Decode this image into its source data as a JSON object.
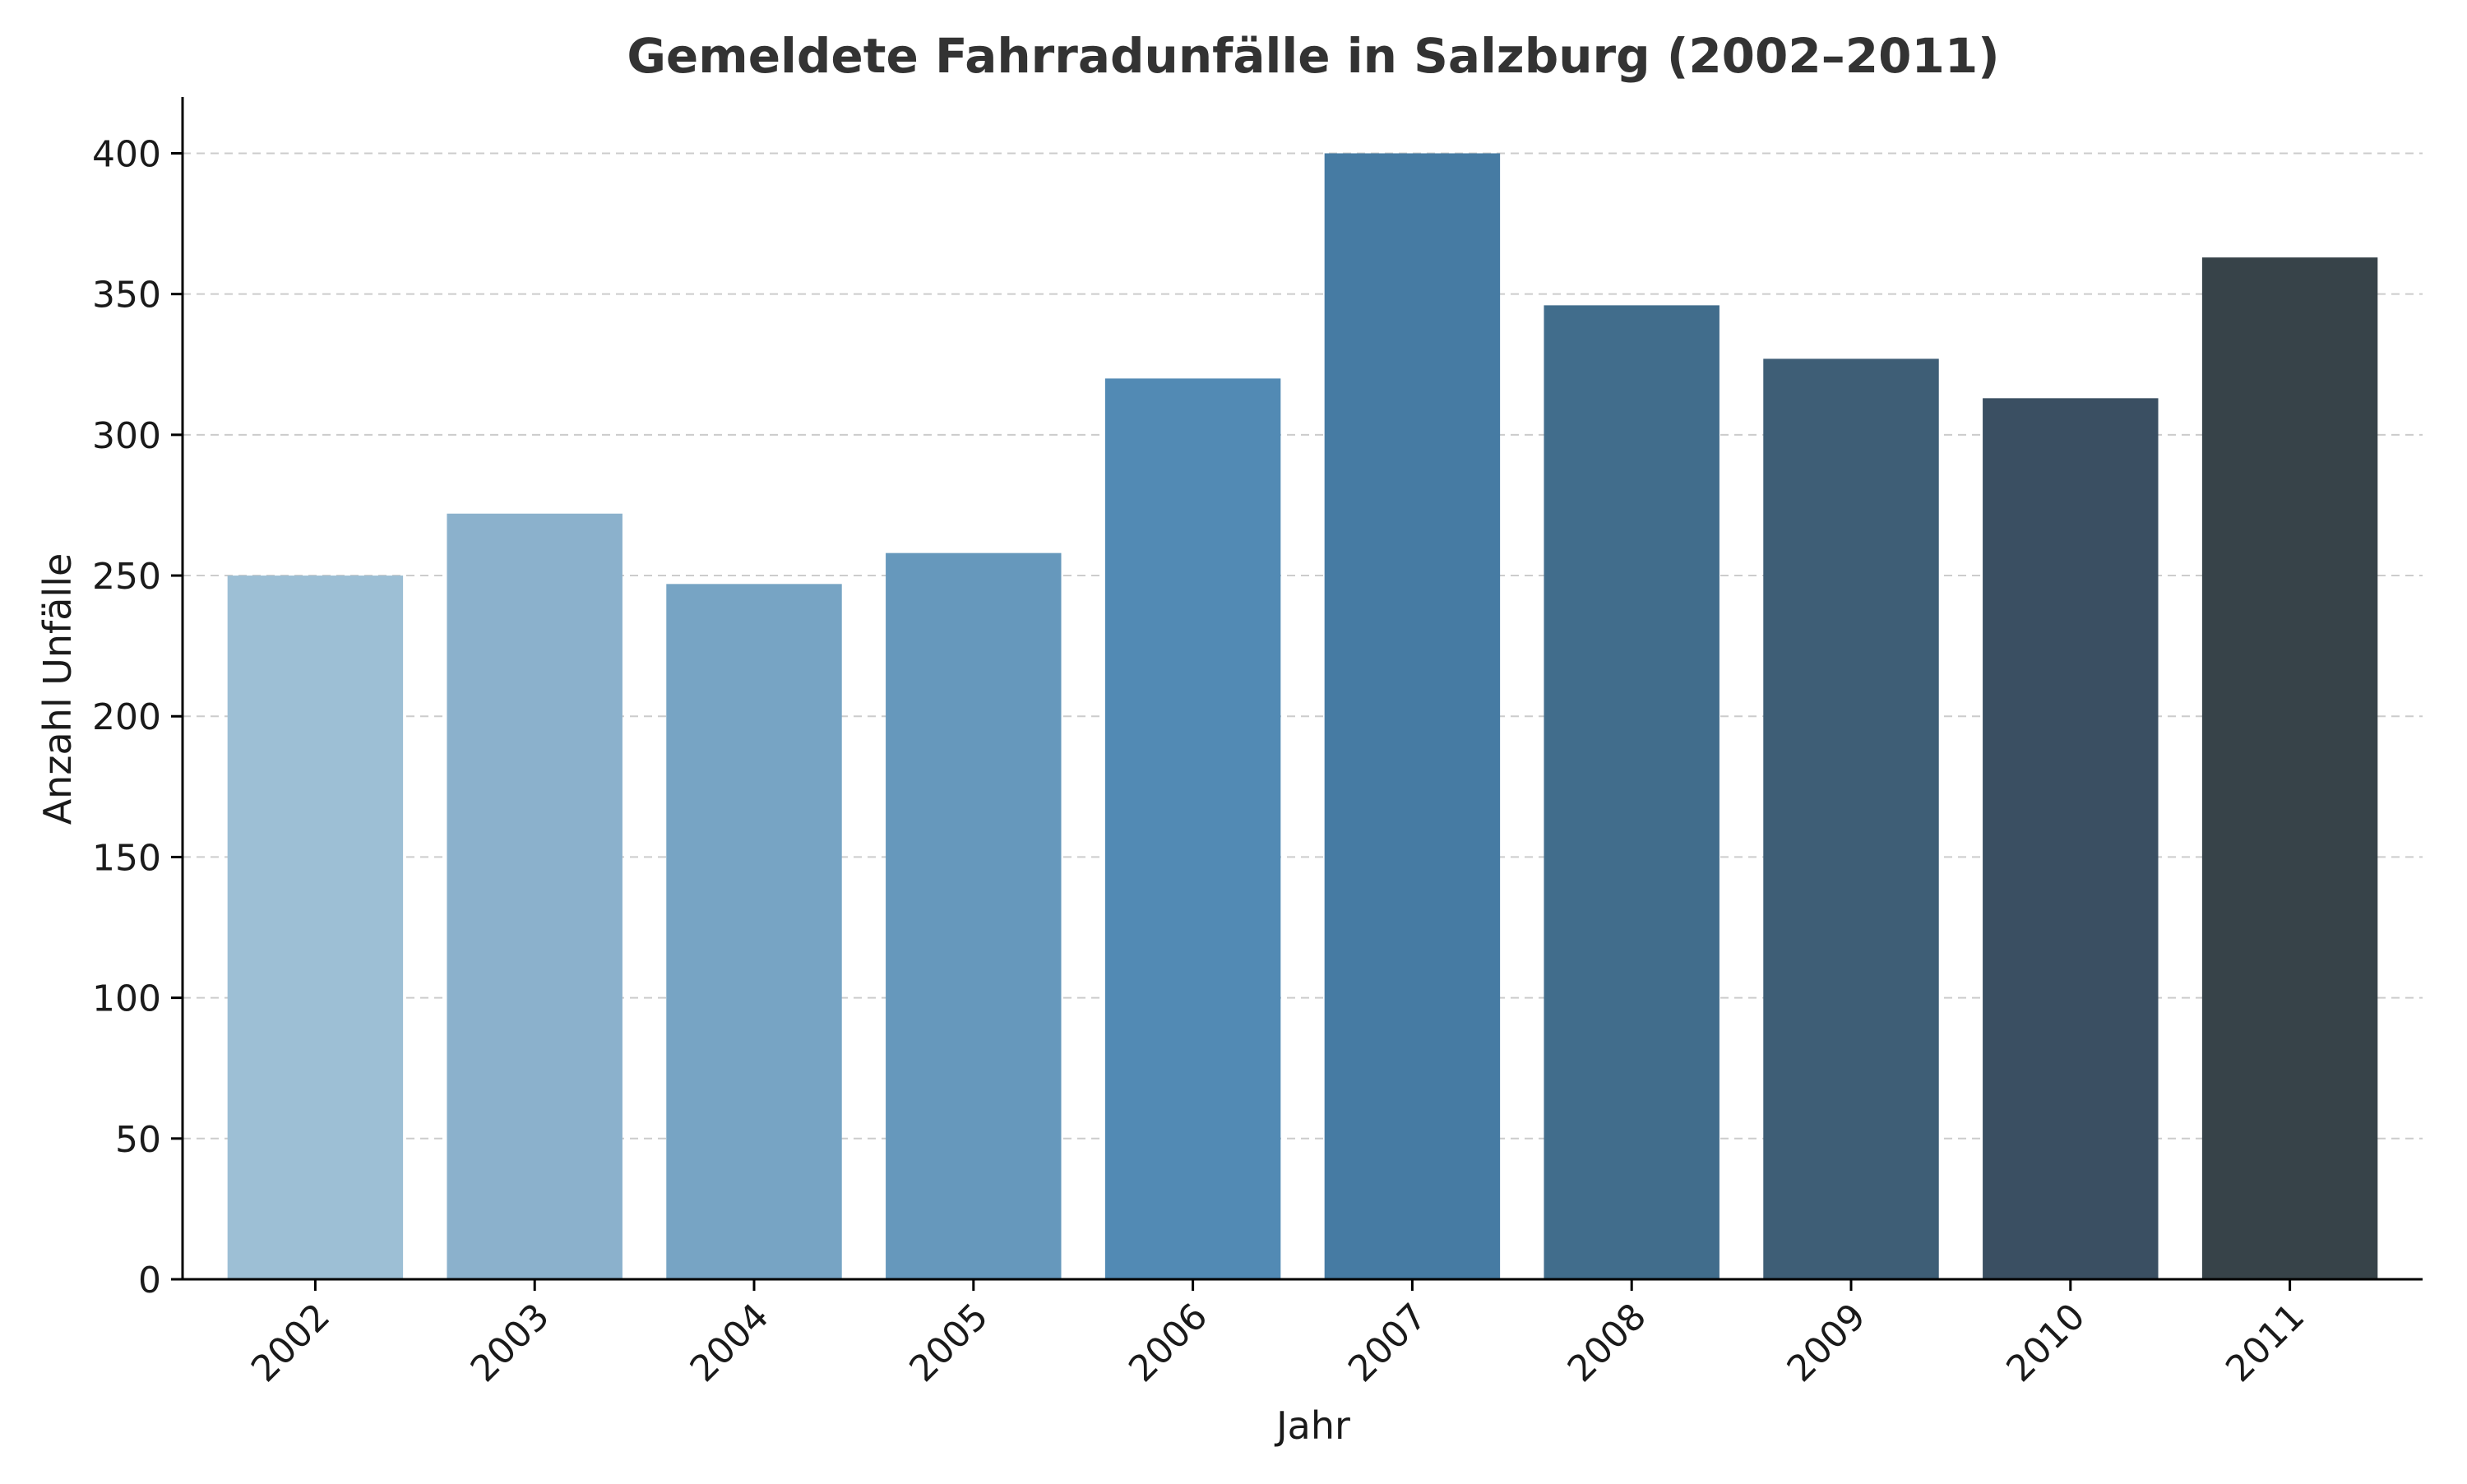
{
  "chart_data": {
    "type": "bar",
    "title": "Gemeldete Fahrradunfälle in Salzburg (2002–2011)",
    "xlabel": "Jahr",
    "ylabel": "Anzahl Unfälle",
    "categories": [
      "2002",
      "2003",
      "2004",
      "2005",
      "2006",
      "2007",
      "2008",
      "2009",
      "2010",
      "2011"
    ],
    "values": [
      250,
      272,
      247,
      258,
      320,
      400,
      346,
      327,
      313,
      363
    ],
    "bar_colors": [
      "#9dbfd5",
      "#8bb1cc",
      "#77a4c4",
      "#6698bc",
      "#528ab4",
      "#467ba3",
      "#416d8c",
      "#3e5e76",
      "#3a4f62",
      "#374349"
    ],
    "ylim": [
      0,
      420
    ],
    "yticks": [
      0,
      50,
      100,
      150,
      200,
      250,
      300,
      350,
      400
    ],
    "ytick_labels": [
      "0",
      "50",
      "100",
      "150",
      "200",
      "250",
      "300",
      "350",
      "400"
    ],
    "grid": true,
    "grid_axis": "y",
    "grid_color": "#cccccc",
    "axis_color": "#000000",
    "title_color": "#333333"
  }
}
